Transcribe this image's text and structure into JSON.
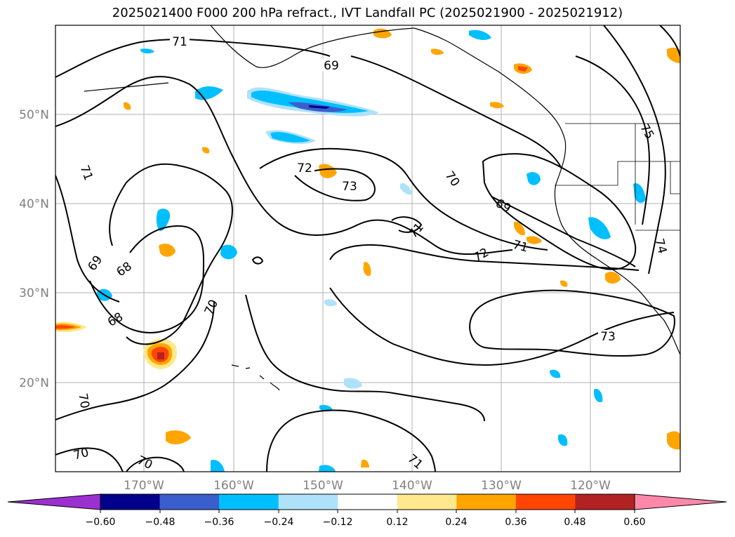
{
  "title": "2025021400 F000 200 hPa refract., IVT Landfall PC (2025021900 - 2025021912)",
  "latitude_labels": [
    "50°N",
    "40°N",
    "30°N",
    "20°N"
  ],
  "longitude_labels": [
    "170°W",
    "160°W",
    "150°W",
    "140°W",
    "130°W",
    "120°W"
  ],
  "contour_labels": [
    "71",
    "69",
    "71",
    "72",
    "73",
    "70",
    "69",
    "71",
    "71",
    "72",
    "69",
    "68",
    "68",
    "70",
    "73",
    "70",
    "70",
    "70",
    "71",
    "75",
    "74"
  ],
  "colorbar": {
    "tick_labels": [
      "−0.60",
      "−0.48",
      "−0.36",
      "−0.24",
      "−0.12",
      "0.12",
      "0.24",
      "0.36",
      "0.48",
      "0.60"
    ],
    "colors": [
      "#9b30d0",
      "#00008b",
      "#3a5fcd",
      "#00bfff",
      "#aee2fa",
      "#ffffff",
      "#ffe98c",
      "#ffa500",
      "#ff4500",
      "#b22222",
      "#ff88aa"
    ]
  }
}
